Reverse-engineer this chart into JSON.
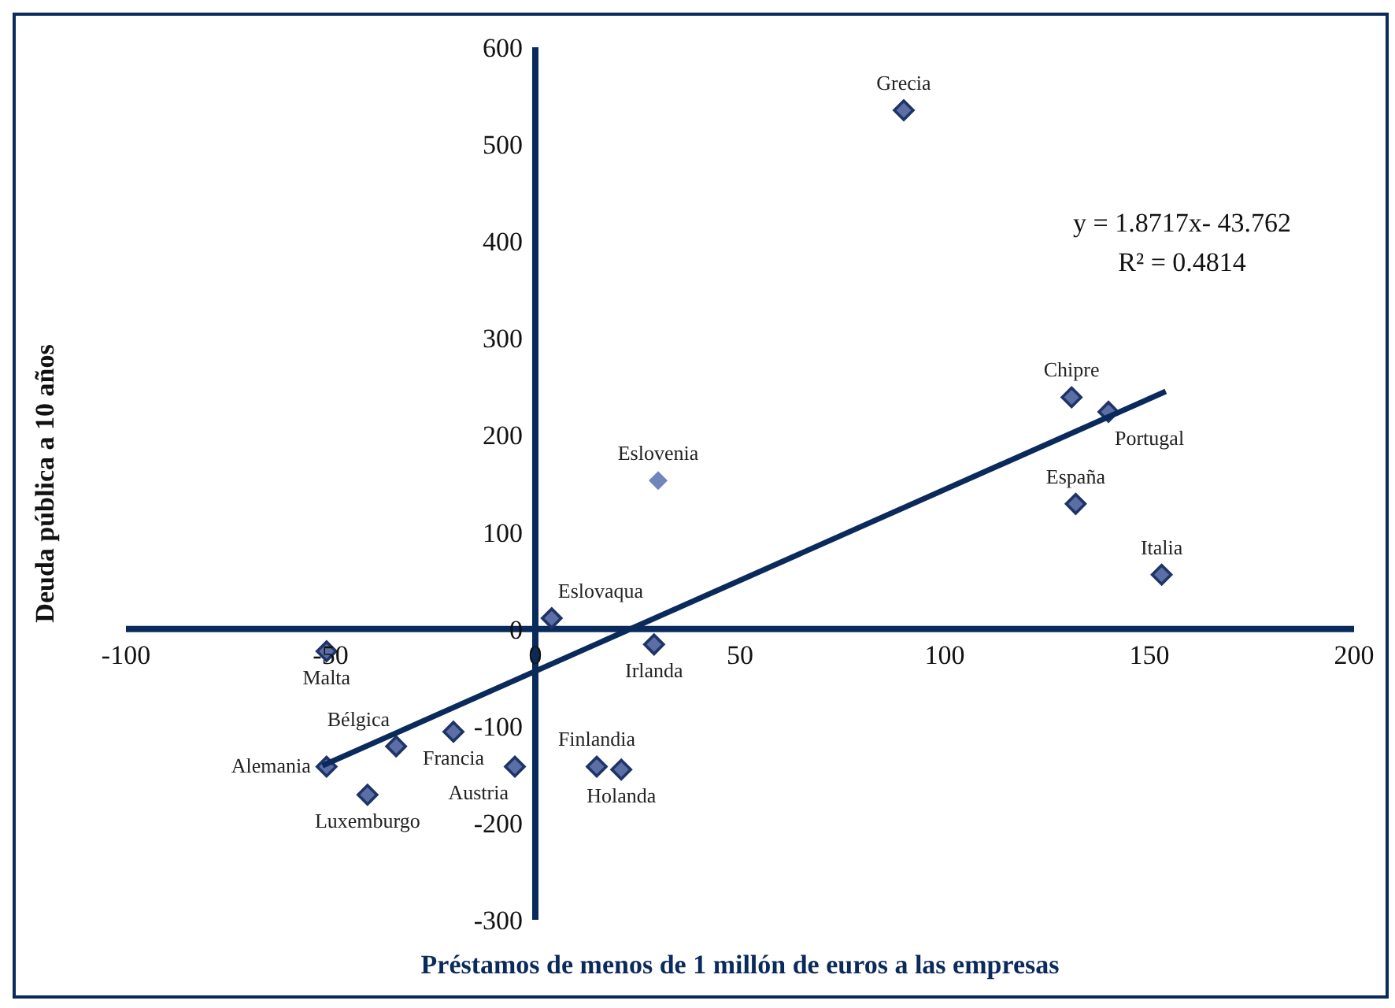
{
  "chart_data": {
    "type": "scatter",
    "xlabel": "Préstamos de menos de 1 millón de euros a las empresas",
    "ylabel": "Deuda pública a 10 años",
    "xlim": [
      -100,
      200
    ],
    "xticks": [
      -100,
      -50,
      0,
      50,
      100,
      150,
      200
    ],
    "ylim": [
      -300,
      600
    ],
    "yticks": [
      -300,
      -200,
      -100,
      0,
      100,
      200,
      300,
      400,
      500,
      600
    ],
    "marker": "diamond",
    "series": [
      {
        "color": "#5b6ea6",
        "x": [
          90,
          131,
          140,
          132,
          153,
          30,
          4,
          29,
          -51,
          -20,
          -34,
          -51,
          -41,
          -5,
          15,
          21
        ],
        "values": [
          535,
          239,
          224,
          129,
          56,
          153,
          11,
          -16,
          -23,
          -106,
          -121,
          -142,
          -171,
          -142,
          -142,
          -145
        ],
        "colors": [
          "#5b6ea6",
          "#5b6ea6",
          "#5b6ea6",
          "#5b6ea6",
          "#5b6ea6",
          "#7385bd",
          "#5b6ea6",
          "#5b6ea6",
          "#5b6ea6",
          "#5b6ea6",
          "#5b6ea6",
          "#5b6ea6",
          "#5b6ea6",
          "#5b6ea6",
          "#5b6ea6",
          "#5b6ea6"
        ]
      },
      {
        "type": "line",
        "marker": "none",
        "color": "#0b2a5c",
        "x": [
          -52,
          154
        ],
        "values": [
          -141,
          245
        ]
      }
    ],
    "annotations": [
      {
        "text": "Grecia",
        "x": 90,
        "y": 535
      },
      {
        "text": "Chipre",
        "x": 131,
        "y": 239
      },
      {
        "text": "Portugal",
        "x": 140,
        "y": 224
      },
      {
        "text": "España",
        "x": 132,
        "y": 129
      },
      {
        "text": "Italia",
        "x": 153,
        "y": 56
      },
      {
        "text": "Eslovenia",
        "x": 30,
        "y": 153
      },
      {
        "text": "Eslovaqua",
        "x": 4,
        "y": 11
      },
      {
        "text": "Irlanda",
        "x": 29,
        "y": -16
      },
      {
        "text": "Malta",
        "x": -51,
        "y": -23
      },
      {
        "text": "Francia",
        "x": -20,
        "y": -106
      },
      {
        "text": "Bélgica",
        "x": -34,
        "y": -121
      },
      {
        "text": "Alemania",
        "x": -51,
        "y": -142
      },
      {
        "text": "Luxemburgo",
        "x": -41,
        "y": -171
      },
      {
        "text": "Austria",
        "x": -5,
        "y": -142
      },
      {
        "text": "Finlandia",
        "x": 15,
        "y": -142
      },
      {
        "text": "Holanda",
        "x": 21,
        "y": -145
      },
      "y = 1.8717x- 43.762",
      "R² = 0.4814"
    ]
  }
}
